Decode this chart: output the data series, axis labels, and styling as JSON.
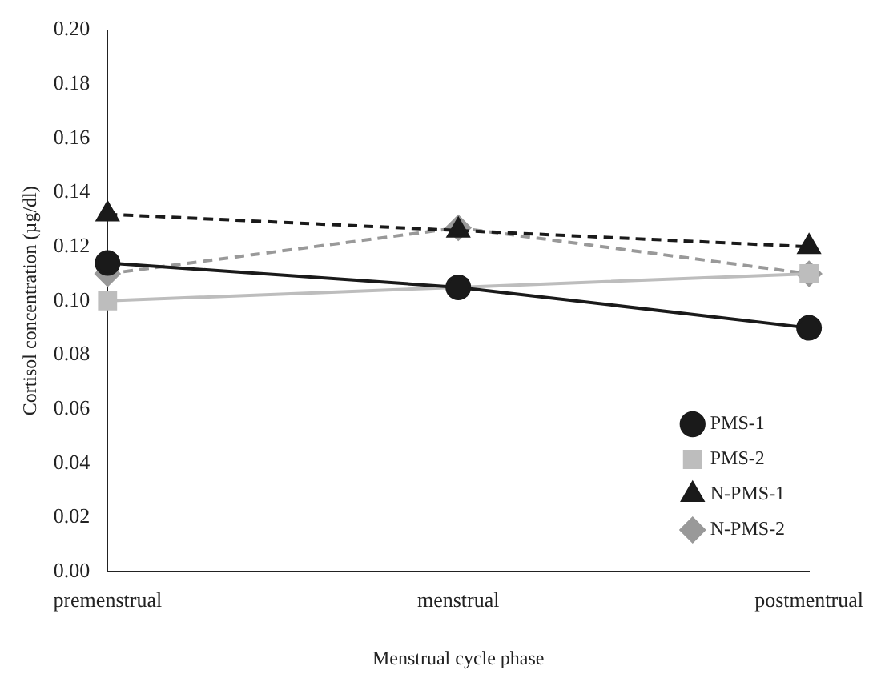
{
  "chart_data": {
    "type": "line",
    "xlabel": "Menstrual cycle phase",
    "ylabel": "Cortisol concentration (µg/dl)",
    "categories": [
      "premenstrual",
      "menstrual",
      "postmentrual"
    ],
    "series": [
      {
        "name": "PMS-1",
        "color": "#1a1a1a",
        "values": [
          0.114,
          0.105,
          0.09
        ],
        "marker": "circle",
        "line_style": "solid"
      },
      {
        "name": "PMS-2",
        "color": "#bdbdbd",
        "values": [
          0.1,
          0.105,
          0.11
        ],
        "marker": "square",
        "line_style": "solid"
      },
      {
        "name": "N-PMS-1",
        "color": "#1a1a1a",
        "values": [
          0.132,
          0.126,
          0.12
        ],
        "marker": "triangle",
        "line_style": "dashed"
      },
      {
        "name": "N-PMS-2",
        "color": "#999999",
        "values": [
          0.11,
          0.127,
          0.11
        ],
        "marker": "diamond",
        "line_style": "dashed"
      }
    ],
    "ylim": [
      0,
      0.2
    ],
    "yticks": [
      {
        "value": 0,
        "label": "0.00"
      },
      {
        "value": 0.02,
        "label": "0.02"
      },
      {
        "value": 0.04,
        "label": "0.04"
      },
      {
        "value": 0.06,
        "label": "0.06"
      },
      {
        "value": 0.08,
        "label": "0.08"
      },
      {
        "value": 0.1,
        "label": "0.10"
      },
      {
        "value": 0.12,
        "label": "0.12"
      },
      {
        "value": 0.14,
        "label": "0.14"
      },
      {
        "value": 0.16,
        "label": "0.16"
      },
      {
        "value": 0.18,
        "label": "0.18"
      },
      {
        "value": 0.2,
        "label": "0.20"
      }
    ],
    "grid": false,
    "legend": "bottom right"
  }
}
